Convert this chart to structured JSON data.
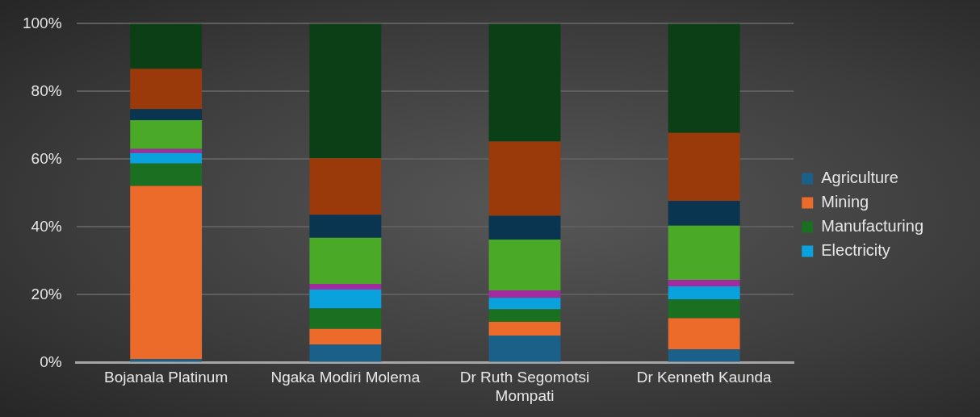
{
  "chart_data": {
    "type": "bar",
    "stacked": true,
    "categories": [
      "Bojanala Platinum",
      "Ngaka Modiri Molema",
      "Dr Ruth Segomotsi Mompati",
      "Dr Kenneth Kaunda"
    ],
    "series": [
      {
        "name": "Agriculture",
        "color": "#1a6089",
        "values": [
          1.0,
          5.3,
          7.9,
          3.9
        ]
      },
      {
        "name": "Mining",
        "color": "#ec6a2a",
        "values": [
          51.1,
          4.6,
          4.1,
          9.2
        ]
      },
      {
        "name": "Manufacturing",
        "color": "#1a7020",
        "values": [
          6.6,
          6.0,
          3.7,
          5.5
        ]
      },
      {
        "name": "Electricity",
        "color": "#0aa2dc",
        "values": [
          3.1,
          5.6,
          3.4,
          3.9
        ]
      },
      {
        "color": "#a02ca0",
        "values": [
          1.2,
          1.7,
          2.2,
          1.9
        ]
      },
      {
        "color": "#4aaa28",
        "values": [
          8.5,
          13.6,
          15.0,
          16.0
        ]
      },
      {
        "color": "#0a3550",
        "values": [
          3.3,
          6.8,
          7.0,
          7.3
        ]
      },
      {
        "color": "#9a3a0a",
        "values": [
          11.9,
          16.7,
          21.9,
          20.1
        ]
      },
      {
        "color": "#0b4016",
        "values": [
          13.3,
          39.7,
          34.8,
          32.2
        ]
      }
    ],
    "ylim": [
      0,
      100
    ],
    "yticks": [
      {
        "value": 0,
        "label": "0%"
      },
      {
        "value": 20,
        "label": "20%"
      },
      {
        "value": 40,
        "label": "40%"
      },
      {
        "value": 60,
        "label": "60%"
      },
      {
        "value": 80,
        "label": "80%"
      },
      {
        "value": 100,
        "label": "100%"
      }
    ],
    "grid": "y",
    "legend": "right"
  }
}
